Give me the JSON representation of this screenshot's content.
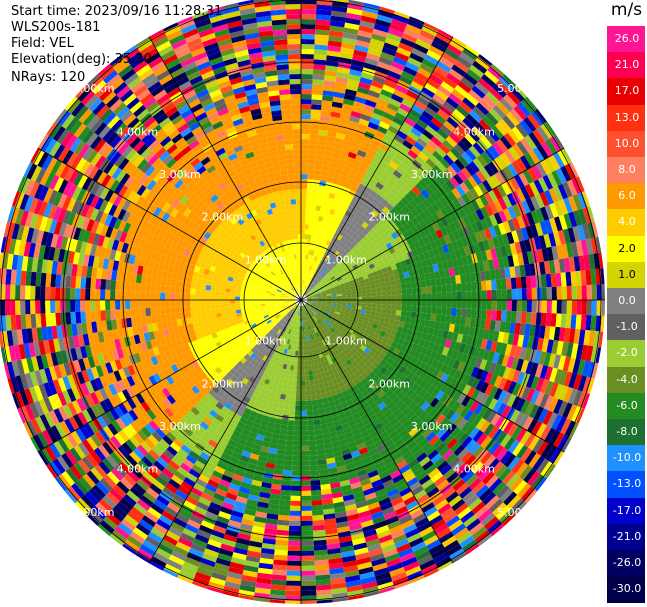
{
  "header": {
    "start_time": "Start time: 2023/09/16 11:28:31",
    "instrument": "WLS200s-181",
    "field": "Field: VEL",
    "elevation": "Elevation(deg): 35.30",
    "nrays": "NRays: 120"
  },
  "chart_data": {
    "type": "heatmap",
    "projection": "polar-ppi",
    "field": "VEL",
    "units": "m/s",
    "n_rays": 120,
    "elevation_deg": 35.3,
    "range_ring_labels": [
      "1.00km",
      "2.00km",
      "3.00km",
      "4.00km",
      "5.00km"
    ],
    "colorbar": {
      "unit": "m/s",
      "ticks": [
        "26.0",
        "21.0",
        "17.0",
        "13.0",
        "10.0",
        "8.0",
        "6.0",
        "4.0",
        "2.0",
        "1.0",
        "0.0",
        "-1.0",
        "-2.0",
        "-4.0",
        "-6.0",
        "-8.0",
        "-10.0",
        "-13.0",
        "-17.0",
        "-21.0",
        "-26.0",
        "-30.0"
      ],
      "colors": [
        "#ff1493",
        "#ff0050",
        "#e80000",
        "#ff3010",
        "#ff5030",
        "#ff8060",
        "#ff9900",
        "#ffcc00",
        "#ffff00",
        "#d4d400",
        "#808080",
        "#606060",
        "#9acd32",
        "#6b8e23",
        "#228b22",
        "#1e7030",
        "#1e90ff",
        "#0050ff",
        "#0000cd",
        "#000090",
        "#000060",
        "#00004a"
      ]
    },
    "velocity_pattern": "approaching (gray/green, negative) toward south-east, receding (yellow/orange, positive) toward north-west; outer ranges noisy"
  }
}
